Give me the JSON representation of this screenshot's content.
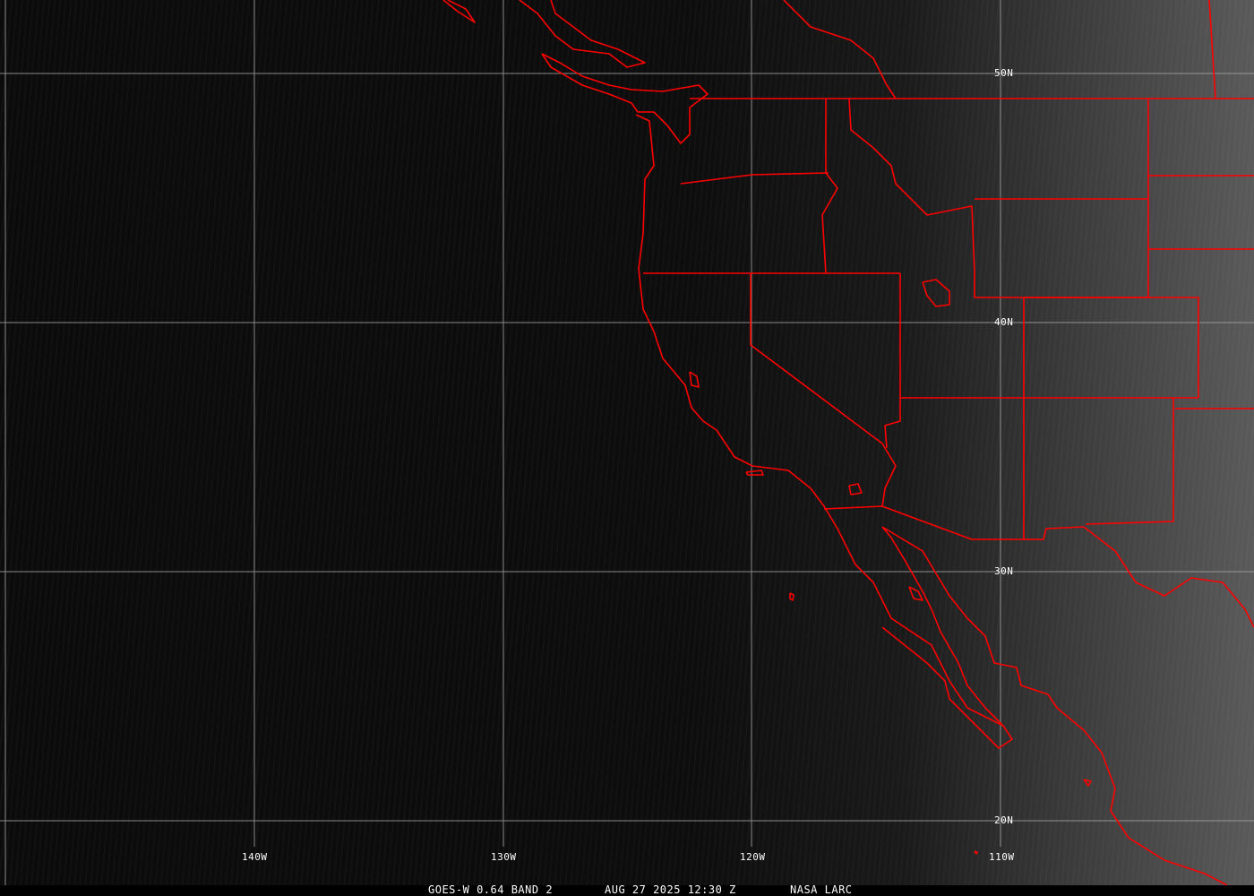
{
  "map": {
    "satellite": "GOES-W 0.64 BAND 2",
    "datetime": "AUG 27 2025 12:30 Z",
    "source": "NASA LARC",
    "lat_labels": [
      "50N",
      "40N",
      "30N",
      "20N"
    ],
    "lon_labels": [
      "140W",
      "130W",
      "120W",
      "110W"
    ],
    "colors": {
      "borders": "#ff0000",
      "grid": "#b0b0b0",
      "labels": "#ffffff"
    }
  }
}
